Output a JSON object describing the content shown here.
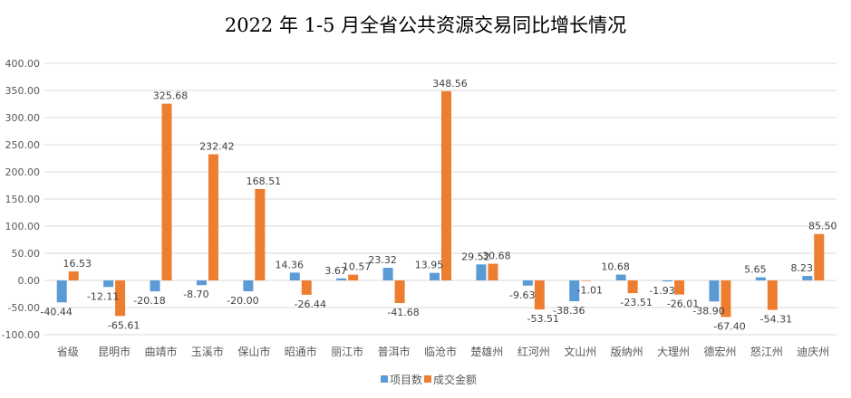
{
  "chart_data": {
    "type": "bar",
    "title": "2022 年 1-5 月全省公共资源交易同比增长情况",
    "categories": [
      "省级",
      "昆明市",
      "曲靖市",
      "玉溪市",
      "保山市",
      "昭通市",
      "丽江市",
      "普洱市",
      "临沧市",
      "楚雄州",
      "红河州",
      "文山州",
      "版纳州",
      "大理州",
      "德宏州",
      "怒江州",
      "迪庆州"
    ],
    "series": [
      {
        "name": "项目数",
        "color": "#5B9BD5",
        "values": [
          -40.44,
          -12.11,
          -20.18,
          -8.7,
          -20.0,
          14.36,
          3.67,
          23.32,
          13.95,
          29.52,
          -9.63,
          -38.36,
          10.68,
          -1.93,
          -38.9,
          5.65,
          8.23
        ]
      },
      {
        "name": "成交金额",
        "color": "#ED7D31",
        "values": [
          16.53,
          -65.61,
          325.68,
          232.42,
          168.51,
          -26.44,
          10.57,
          -41.68,
          348.56,
          30.68,
          -53.51,
          -1.01,
          -23.51,
          -26.01,
          -67.4,
          -54.31,
          85.5
        ]
      }
    ],
    "data_labels": {
      "s0": [
        "-40.44",
        "-12.11",
        "-20.18",
        "-8.70",
        "-20.00",
        "14.36",
        "3.67",
        "23.32",
        "13.95",
        "29.52",
        "-9.63",
        "-38.36",
        "10.68",
        "-1.93",
        "-38.90",
        "5.65",
        "8.23"
      ],
      "s1": [
        "16.53",
        "-65.61",
        "325.68",
        "232.42",
        "168.51",
        "-26.44",
        "10.57",
        "-41.68",
        "348.56",
        "30.68",
        "-53.51",
        "-1.01",
        "-23.51",
        "-26.01",
        "-67.40",
        "-54.31",
        "85.50"
      ]
    },
    "ylim": [
      -100,
      400
    ],
    "yticks": [
      "-100.00",
      "-50.00",
      "0.00",
      "50.00",
      "100.00",
      "150.00",
      "200.00",
      "250.00",
      "300.00",
      "350.00",
      "400.00"
    ],
    "ytick_values": [
      -100,
      -50,
      0,
      50,
      100,
      150,
      200,
      250,
      300,
      350,
      400
    ],
    "grid": true,
    "legend_position": "bottom"
  }
}
